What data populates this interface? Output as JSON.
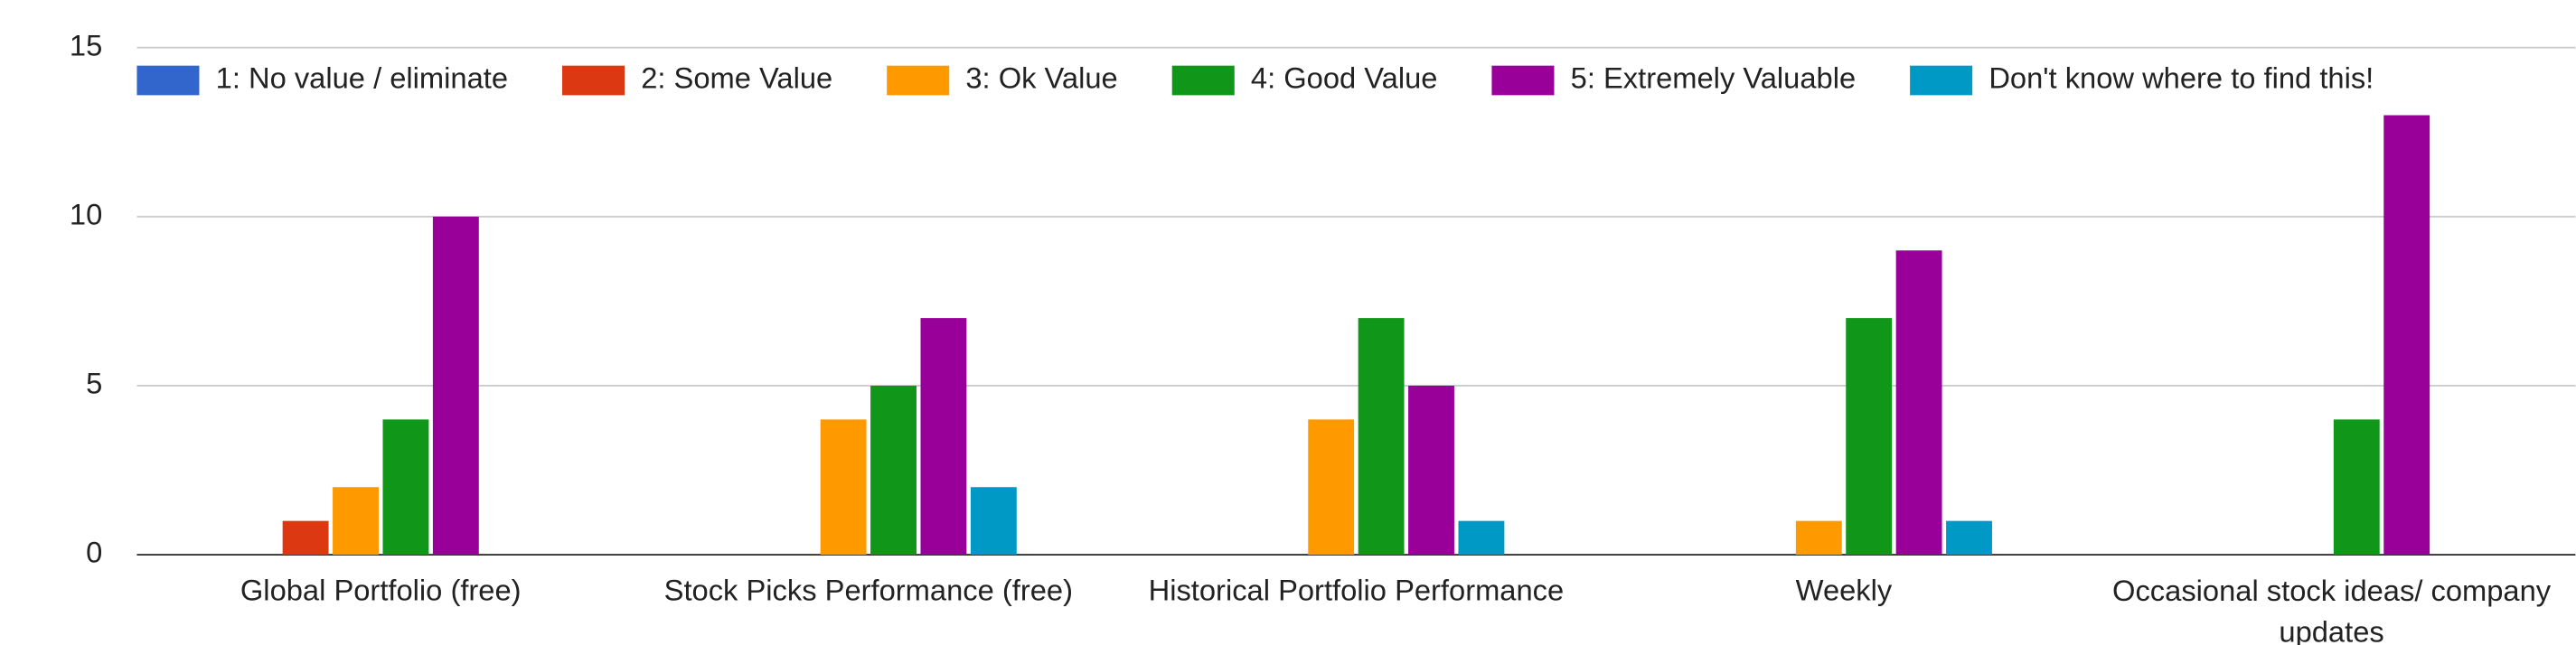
{
  "chart_data": {
    "type": "bar",
    "categories": [
      "Global Portfolio (free)",
      "Stock Picks Performance (free)",
      "Historical Portfolio Performance",
      "Weekly",
      "Occasional stock ideas/ company updates"
    ],
    "series": [
      {
        "name": "1: No value / eliminate",
        "color": "#3366cc",
        "values": [
          0,
          0,
          0,
          0,
          0
        ]
      },
      {
        "name": "2: Some Value",
        "color": "#dc3912",
        "values": [
          1,
          0,
          0,
          0,
          0
        ]
      },
      {
        "name": "3: Ok Value",
        "color": "#ff9900",
        "values": [
          2,
          4,
          4,
          1,
          0
        ]
      },
      {
        "name": "4: Good Value",
        "color": "#109618",
        "values": [
          4,
          5,
          7,
          7,
          4
        ]
      },
      {
        "name": "5: Extremely Valuable",
        "color": "#990099",
        "values": [
          10,
          7,
          5,
          9,
          13
        ]
      },
      {
        "name": "Don't know where to find this!",
        "color": "#0099c6",
        "values": [
          0,
          2,
          1,
          1,
          0
        ]
      }
    ],
    "ylim": [
      0,
      15
    ],
    "yticks": [
      0,
      5,
      10,
      15
    ],
    "grid": true,
    "legend": "top"
  }
}
